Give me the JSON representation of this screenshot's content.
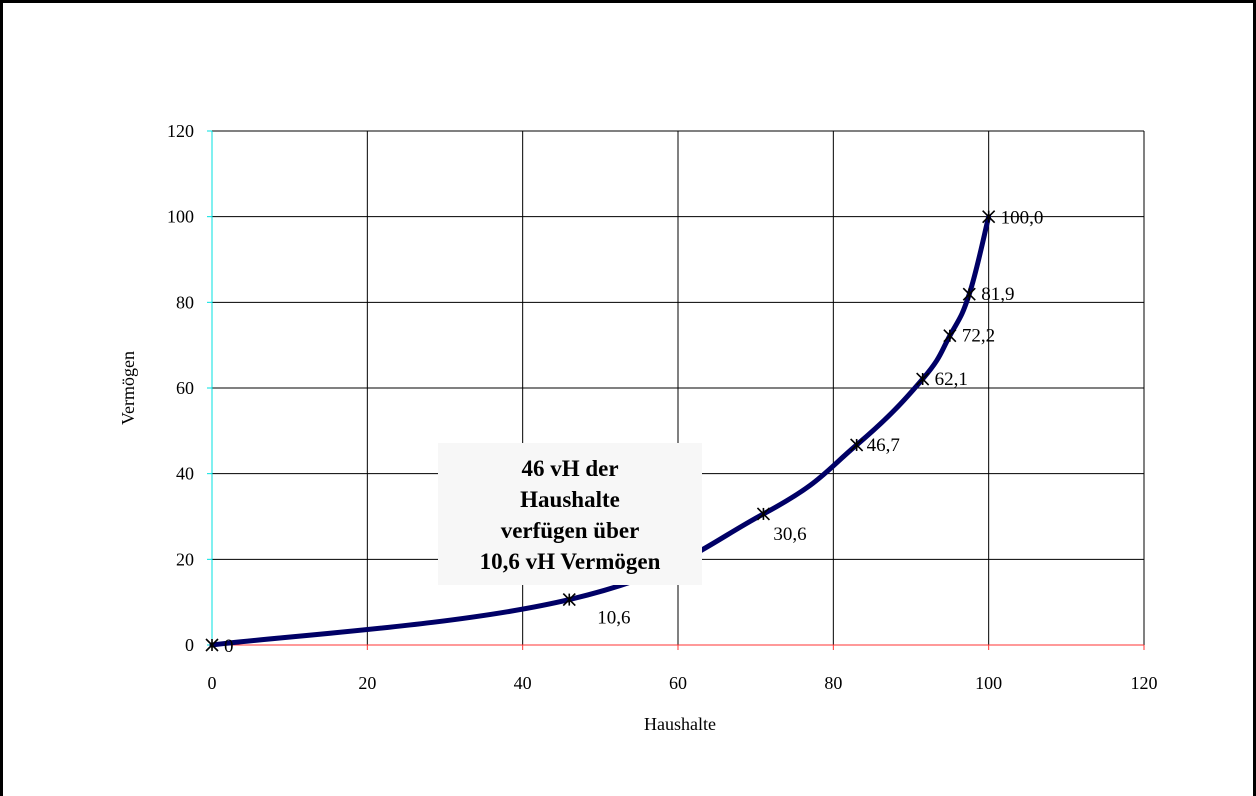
{
  "chart_data": {
    "type": "line",
    "title": "",
    "xlabel": "Haushalte",
    "ylabel": "Vermögen",
    "xlim": [
      0,
      120
    ],
    "ylim": [
      0,
      120
    ],
    "xticks": [
      "0",
      "20",
      "40",
      "60",
      "80",
      "100",
      "120"
    ],
    "yticks": [
      "0",
      "20",
      "40",
      "60",
      "80",
      "100",
      "120"
    ],
    "grid": true,
    "series": [
      {
        "color": "#000066",
        "x": [
          0,
          46,
          71,
          83,
          91.5,
          95,
          97.5,
          100
        ],
        "y": [
          0,
          10.6,
          30.6,
          46.7,
          62.1,
          72.2,
          81.9,
          100
        ],
        "labels": [
          "0",
          "10,6",
          "30,6",
          "46,7",
          "62,1",
          "72,2",
          "81,9",
          "100,0"
        ]
      }
    ],
    "annotation": {
      "lines": [
        "46 vH der",
        "Haushalte",
        "verfügen über",
        "10,6 vH Vermögen"
      ]
    }
  }
}
